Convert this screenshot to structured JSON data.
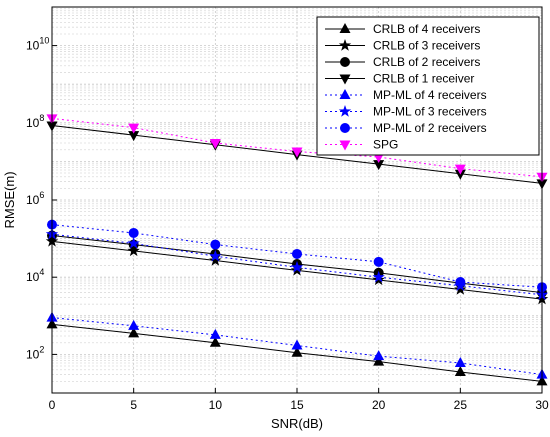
{
  "chart_data": {
    "type": "line",
    "xlabel": "SNR(dB)",
    "ylabel": "RMSE(m)",
    "x": [
      0,
      5,
      10,
      15,
      20,
      25,
      30
    ],
    "xlim": [
      0,
      30
    ],
    "ylim": [
      10,
      100000000000.0
    ],
    "yscale": "log",
    "grid": true,
    "legend_position": "top-right",
    "x_ticks": [
      {
        "value": 0,
        "label": "0"
      },
      {
        "value": 5,
        "label": "5"
      },
      {
        "value": 10,
        "label": "10"
      },
      {
        "value": 15,
        "label": "15"
      },
      {
        "value": 20,
        "label": "20"
      },
      {
        "value": 25,
        "label": "25"
      },
      {
        "value": 30,
        "label": "30"
      }
    ],
    "y_ticks": [
      {
        "value": 100,
        "base": "10",
        "exp": "2"
      },
      {
        "value": 10000,
        "base": "10",
        "exp": "4"
      },
      {
        "value": 1000000,
        "base": "10",
        "exp": "6"
      },
      {
        "value": 100000000,
        "base": "10",
        "exp": "8"
      },
      {
        "value": 10000000000,
        "base": "10",
        "exp": "10"
      }
    ],
    "series": [
      {
        "name": "CRLB of 4 receivers",
        "color": "#000000",
        "dash": "solid",
        "marker": "triangle-up",
        "values": [
          600,
          350,
          200,
          110,
          65,
          35,
          20
        ]
      },
      {
        "name": "CRLB of 3 receivers",
        "color": "#000000",
        "dash": "solid",
        "marker": "star",
        "values": [
          85000,
          48000,
          27000,
          15000,
          8500,
          4800,
          2700
        ]
      },
      {
        "name": "CRLB of 2 receivers",
        "color": "#000000",
        "dash": "solid",
        "marker": "circle",
        "values": [
          120000,
          70000,
          40000,
          22000,
          13000,
          7000,
          4000
        ]
      },
      {
        "name": "CRLB of 1 receiver",
        "color": "#000000",
        "dash": "solid",
        "marker": "triangle-down",
        "values": [
          85000000,
          48000000,
          27000000,
          15000000,
          8500000,
          4800000,
          2700000
        ]
      },
      {
        "name": "MP-ML of 4 receivers",
        "color": "#0000ff",
        "dash": "dotted",
        "marker": "triangle-up",
        "values": [
          900,
          550,
          320,
          170,
          90,
          60,
          30
        ]
      },
      {
        "name": "MP-ML of 3 receivers",
        "color": "#0000ff",
        "dash": "dotted",
        "marker": "star",
        "values": [
          130000,
          75000,
          35000,
          18000,
          10000,
          6000,
          3500
        ]
      },
      {
        "name": "MP-ML of 2 receivers",
        "color": "#0000ff",
        "dash": "dotted",
        "marker": "circle",
        "values": [
          230000,
          140000,
          70000,
          40000,
          25000,
          7500,
          5500
        ]
      },
      {
        "name": "SPG",
        "color": "#ff00ff",
        "dash": "dotted",
        "marker": "triangle-down",
        "values": [
          130000000,
          75000000,
          30000000,
          18000000,
          13000000,
          6500000,
          4000000
        ]
      }
    ]
  }
}
